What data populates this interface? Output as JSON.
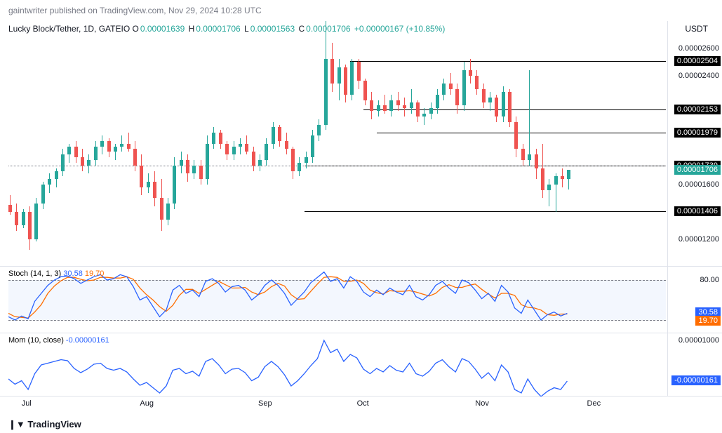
{
  "header": {
    "publisher": "gaintwriter",
    "published_text": "published on",
    "site": "TradingView.com",
    "timestamp": "Nov 29, 2024 10:28 UTC"
  },
  "main_chart": {
    "symbol": "Lucky Block/Tether, 1D, GATEIO",
    "ohlc": {
      "O": "0.00001639",
      "H": "0.00001706",
      "L": "0.00001563",
      "C": "0.00001706",
      "change": "+0.00000167",
      "pct": "+10.85%"
    },
    "ohlc_color": "#26a69a",
    "unit": "USDT",
    "ylim": [
      1.1e-05,
      2.8e-05
    ],
    "y_ticks": [
      {
        "v": 2.6e-05,
        "label": "0.00002600"
      },
      {
        "v": 2.4e-05,
        "label": "0.00002400"
      },
      {
        "v": 1.6e-05,
        "label": "0.00001600"
      },
      {
        "v": 1.2e-05,
        "label": "0.00001200"
      }
    ],
    "price_lines": [
      {
        "v": 2.504e-05,
        "label": "0.00002504"
      },
      {
        "v": 2.153e-05,
        "label": "0.00002153"
      },
      {
        "v": 1.979e-05,
        "label": "0.00001979"
      },
      {
        "v": 1.739e-05,
        "label": "0.00001739"
      },
      {
        "v": 1.406e-05,
        "label": "0.00001406"
      }
    ],
    "current_price": {
      "v": 1.706e-05,
      "label": "0.00001706",
      "color": "#26a69a"
    },
    "line_starts": {
      "0.00002504": 0.52,
      "0.00002153": 0.54,
      "0.00001979": 0.56,
      "0.00001739": 0.45,
      "0.00001406": 0.45
    },
    "dotted_line": {
      "v": 1.739e-05,
      "start": 0.0
    },
    "colors": {
      "up": "#26a69a",
      "down": "#ef5350"
    },
    "candles": [
      {
        "o": 1.45e-05,
        "h": 1.52e-05,
        "l": 1.38e-05,
        "c": 1.4e-05,
        "t": 0.0
      },
      {
        "o": 1.4e-05,
        "h": 1.46e-05,
        "l": 1.26e-05,
        "c": 1.3e-05,
        "t": 0.01
      },
      {
        "o": 1.3e-05,
        "h": 1.42e-05,
        "l": 1.28e-05,
        "c": 1.4e-05,
        "t": 0.02
      },
      {
        "o": 1.4e-05,
        "h": 1.44e-05,
        "l": 1.12e-05,
        "c": 1.2e-05,
        "t": 0.03
      },
      {
        "o": 1.2e-05,
        "h": 1.5e-05,
        "l": 1.18e-05,
        "c": 1.46e-05,
        "t": 0.04
      },
      {
        "o": 1.46e-05,
        "h": 1.62e-05,
        "l": 1.42e-05,
        "c": 1.6e-05,
        "t": 0.05
      },
      {
        "o": 1.6e-05,
        "h": 1.68e-05,
        "l": 1.54e-05,
        "c": 1.64e-05,
        "t": 0.06
      },
      {
        "o": 1.64e-05,
        "h": 1.72e-05,
        "l": 1.58e-05,
        "c": 1.7e-05,
        "t": 0.07
      },
      {
        "o": 1.7e-05,
        "h": 1.86e-05,
        "l": 1.66e-05,
        "c": 1.82e-05,
        "t": 0.08
      },
      {
        "o": 1.82e-05,
        "h": 1.9e-05,
        "l": 1.76e-05,
        "c": 1.88e-05,
        "t": 0.09
      },
      {
        "o": 1.88e-05,
        "h": 1.92e-05,
        "l": 1.76e-05,
        "c": 1.8e-05,
        "t": 0.1
      },
      {
        "o": 1.8e-05,
        "h": 1.86e-05,
        "l": 1.7e-05,
        "c": 1.74e-05,
        "t": 0.11
      },
      {
        "o": 1.74e-05,
        "h": 1.82e-05,
        "l": 1.68e-05,
        "c": 1.78e-05,
        "t": 0.12
      },
      {
        "o": 1.78e-05,
        "h": 1.92e-05,
        "l": 1.74e-05,
        "c": 1.88e-05,
        "t": 0.13
      },
      {
        "o": 1.88e-05,
        "h": 1.96e-05,
        "l": 1.82e-05,
        "c": 1.92e-05,
        "t": 0.14
      },
      {
        "o": 1.92e-05,
        "h": 1.94e-05,
        "l": 1.8e-05,
        "c": 1.84e-05,
        "t": 0.15
      },
      {
        "o": 1.84e-05,
        "h": 1.9e-05,
        "l": 1.78e-05,
        "c": 1.88e-05,
        "t": 0.16
      },
      {
        "o": 1.88e-05,
        "h": 1.96e-05,
        "l": 1.84e-05,
        "c": 1.9e-05,
        "t": 0.17
      },
      {
        "o": 1.9e-05,
        "h": 1.98e-05,
        "l": 1.84e-05,
        "c": 1.86e-05,
        "t": 0.18
      },
      {
        "o": 1.86e-05,
        "h": 1.92e-05,
        "l": 1.7e-05,
        "c": 1.74e-05,
        "t": 0.19
      },
      {
        "o": 1.74e-05,
        "h": 1.82e-05,
        "l": 1.52e-05,
        "c": 1.58e-05,
        "t": 0.2
      },
      {
        "o": 1.58e-05,
        "h": 1.68e-05,
        "l": 1.54e-05,
        "c": 1.62e-05,
        "t": 0.21
      },
      {
        "o": 1.62e-05,
        "h": 1.7e-05,
        "l": 1.44e-05,
        "c": 1.5e-05,
        "t": 0.22
      },
      {
        "o": 1.5e-05,
        "h": 1.64e-05,
        "l": 1.26e-05,
        "c": 1.34e-05,
        "t": 0.23
      },
      {
        "o": 1.34e-05,
        "h": 1.5e-05,
        "l": 1.3e-05,
        "c": 1.46e-05,
        "t": 0.24
      },
      {
        "o": 1.46e-05,
        "h": 1.8e-05,
        "l": 1.42e-05,
        "c": 1.74e-05,
        "t": 0.25
      },
      {
        "o": 1.74e-05,
        "h": 1.84e-05,
        "l": 1.68e-05,
        "c": 1.78e-05,
        "t": 0.26
      },
      {
        "o": 1.78e-05,
        "h": 1.82e-05,
        "l": 1.62e-05,
        "c": 1.68e-05,
        "t": 0.27
      },
      {
        "o": 1.68e-05,
        "h": 1.78e-05,
        "l": 1.64e-05,
        "c": 1.74e-05,
        "t": 0.28
      },
      {
        "o": 1.74e-05,
        "h": 1.78e-05,
        "l": 1.6e-05,
        "c": 1.64e-05,
        "t": 0.29
      },
      {
        "o": 1.64e-05,
        "h": 1.96e-05,
        "l": 1.6e-05,
        "c": 1.9e-05,
        "t": 0.3
      },
      {
        "o": 1.9e-05,
        "h": 2.02e-05,
        "l": 1.86e-05,
        "c": 1.98e-05,
        "t": 0.31
      },
      {
        "o": 1.98e-05,
        "h": 2e-05,
        "l": 1.86e-05,
        "c": 1.9e-05,
        "t": 0.32
      },
      {
        "o": 1.9e-05,
        "h": 1.92e-05,
        "l": 1.78e-05,
        "c": 1.82e-05,
        "t": 0.33
      },
      {
        "o": 1.82e-05,
        "h": 1.92e-05,
        "l": 1.78e-05,
        "c": 1.88e-05,
        "t": 0.34
      },
      {
        "o": 1.88e-05,
        "h": 1.94e-05,
        "l": 1.82e-05,
        "c": 1.9e-05,
        "t": 0.35
      },
      {
        "o": 1.9e-05,
        "h": 1.96e-05,
        "l": 1.82e-05,
        "c": 1.84e-05,
        "t": 0.36
      },
      {
        "o": 1.84e-05,
        "h": 1.88e-05,
        "l": 1.7e-05,
        "c": 1.74e-05,
        "t": 0.37
      },
      {
        "o": 1.74e-05,
        "h": 1.82e-05,
        "l": 1.7e-05,
        "c": 1.78e-05,
        "t": 0.38
      },
      {
        "o": 1.78e-05,
        "h": 1.94e-05,
        "l": 1.74e-05,
        "c": 1.9e-05,
        "t": 0.39
      },
      {
        "o": 1.9e-05,
        "h": 2.06e-05,
        "l": 1.86e-05,
        "c": 2.02e-05,
        "t": 0.4
      },
      {
        "o": 2.02e-05,
        "h": 2.04e-05,
        "l": 1.88e-05,
        "c": 1.92e-05,
        "t": 0.41
      },
      {
        "o": 1.92e-05,
        "h": 1.98e-05,
        "l": 1.82e-05,
        "c": 1.86e-05,
        "t": 0.42
      },
      {
        "o": 1.86e-05,
        "h": 1.88e-05,
        "l": 1.64e-05,
        "c": 1.7e-05,
        "t": 0.43
      },
      {
        "o": 1.7e-05,
        "h": 1.8e-05,
        "l": 1.66e-05,
        "c": 1.76e-05,
        "t": 0.44
      },
      {
        "o": 1.76e-05,
        "h": 1.84e-05,
        "l": 1.72e-05,
        "c": 1.8e-05,
        "t": 0.45
      },
      {
        "o": 1.8e-05,
        "h": 2e-05,
        "l": 1.76e-05,
        "c": 1.96e-05,
        "t": 0.46
      },
      {
        "o": 1.96e-05,
        "h": 2.08e-05,
        "l": 1.92e-05,
        "c": 2.04e-05,
        "t": 0.47
      },
      {
        "o": 2.04e-05,
        "h": 2.8e-05,
        "l": 2e-05,
        "c": 2.52e-05,
        "t": 0.48
      },
      {
        "o": 2.52e-05,
        "h": 2.64e-05,
        "l": 2.28e-05,
        "c": 2.34e-05,
        "t": 0.49
      },
      {
        "o": 2.34e-05,
        "h": 2.52e-05,
        "l": 2.22e-05,
        "c": 2.46e-05,
        "t": 0.5
      },
      {
        "o": 2.46e-05,
        "h": 2.48e-05,
        "l": 2.2e-05,
        "c": 2.26e-05,
        "t": 0.51
      },
      {
        "o": 2.26e-05,
        "h": 2.52e-05,
        "l": 2.22e-05,
        "c": 2.5e-05,
        "t": 0.52
      },
      {
        "o": 2.5e-05,
        "h": 2.52e-05,
        "l": 2.3e-05,
        "c": 2.36e-05,
        "t": 0.53
      },
      {
        "o": 2.36e-05,
        "h": 2.38e-05,
        "l": 2.18e-05,
        "c": 2.22e-05,
        "t": 0.54
      },
      {
        "o": 2.22e-05,
        "h": 2.28e-05,
        "l": 2.08e-05,
        "c": 2.14e-05,
        "t": 0.55
      },
      {
        "o": 2.14e-05,
        "h": 2.22e-05,
        "l": 2.1e-05,
        "c": 2.18e-05,
        "t": 0.56
      },
      {
        "o": 2.18e-05,
        "h": 2.26e-05,
        "l": 2.12e-05,
        "c": 2.14e-05,
        "t": 0.57
      },
      {
        "o": 2.14e-05,
        "h": 2.26e-05,
        "l": 2.1e-05,
        "c": 2.22e-05,
        "t": 0.58
      },
      {
        "o": 2.22e-05,
        "h": 2.28e-05,
        "l": 2.14e-05,
        "c": 2.18e-05,
        "t": 0.59
      },
      {
        "o": 2.18e-05,
        "h": 2.24e-05,
        "l": 2.1e-05,
        "c": 2.16e-05,
        "t": 0.6
      },
      {
        "o": 2.16e-05,
        "h": 2.3e-05,
        "l": 2.12e-05,
        "c": 2.2e-05,
        "t": 0.61
      },
      {
        "o": 2.2e-05,
        "h": 2.22e-05,
        "l": 2.06e-05,
        "c": 2.1e-05,
        "t": 0.62
      },
      {
        "o": 2.1e-05,
        "h": 2.16e-05,
        "l": 2.04e-05,
        "c": 2.12e-05,
        "t": 0.63
      },
      {
        "o": 2.12e-05,
        "h": 2.2e-05,
        "l": 2.08e-05,
        "c": 2.16e-05,
        "t": 0.64
      },
      {
        "o": 2.16e-05,
        "h": 2.3e-05,
        "l": 2.12e-05,
        "c": 2.26e-05,
        "t": 0.65
      },
      {
        "o": 2.26e-05,
        "h": 2.38e-05,
        "l": 2.22e-05,
        "c": 2.34e-05,
        "t": 0.66
      },
      {
        "o": 2.34e-05,
        "h": 2.42e-05,
        "l": 2.26e-05,
        "c": 2.3e-05,
        "t": 0.67
      },
      {
        "o": 2.3e-05,
        "h": 2.34e-05,
        "l": 2.12e-05,
        "c": 2.18e-05,
        "t": 0.68
      },
      {
        "o": 2.18e-05,
        "h": 2.5e-05,
        "l": 2.14e-05,
        "c": 2.44e-05,
        "t": 0.69
      },
      {
        "o": 2.44e-05,
        "h": 2.52e-05,
        "l": 2.34e-05,
        "c": 2.4e-05,
        "t": 0.7
      },
      {
        "o": 2.4e-05,
        "h": 2.44e-05,
        "l": 2.26e-05,
        "c": 2.3e-05,
        "t": 0.71
      },
      {
        "o": 2.3e-05,
        "h": 2.34e-05,
        "l": 2.16e-05,
        "c": 2.2e-05,
        "t": 0.72
      },
      {
        "o": 2.2e-05,
        "h": 2.28e-05,
        "l": 2.14e-05,
        "c": 2.24e-05,
        "t": 0.73
      },
      {
        "o": 2.24e-05,
        "h": 2.26e-05,
        "l": 2.06e-05,
        "c": 2.1e-05,
        "t": 0.74
      },
      {
        "o": 2.1e-05,
        "h": 2.32e-05,
        "l": 2.06e-05,
        "c": 2.28e-05,
        "t": 0.75
      },
      {
        "o": 2.28e-05,
        "h": 2.3e-05,
        "l": 2.02e-05,
        "c": 2.06e-05,
        "t": 0.76
      },
      {
        "o": 2.06e-05,
        "h": 2.1e-05,
        "l": 1.8e-05,
        "c": 1.86e-05,
        "t": 0.77
      },
      {
        "o": 1.86e-05,
        "h": 1.9e-05,
        "l": 1.74e-05,
        "c": 1.78e-05,
        "t": 0.78
      },
      {
        "o": 1.78e-05,
        "h": 2.44e-05,
        "l": 1.74e-05,
        "c": 1.82e-05,
        "t": 0.79
      },
      {
        "o": 1.82e-05,
        "h": 1.86e-05,
        "l": 1.64e-05,
        "c": 1.72e-05,
        "t": 0.8
      },
      {
        "o": 1.72e-05,
        "h": 1.9e-05,
        "l": 1.5e-05,
        "c": 1.56e-05,
        "t": 0.81
      },
      {
        "o": 1.56e-05,
        "h": 1.64e-05,
        "l": 1.44e-05,
        "c": 1.6e-05,
        "t": 0.82
      },
      {
        "o": 1.6e-05,
        "h": 1.68e-05,
        "l": 1.4e-05,
        "c": 1.66e-05,
        "t": 0.83
      },
      {
        "o": 1.66e-05,
        "h": 1.72e-05,
        "l": 1.58e-05,
        "c": 1.64e-05,
        "t": 0.84
      },
      {
        "o": 1.639e-05,
        "h": 1.706e-05,
        "l": 1.563e-05,
        "c": 1.706e-05,
        "t": 0.85
      }
    ]
  },
  "stoch": {
    "label": "Stoch (14, 1, 3)",
    "k_value": "30.58",
    "d_value": "19.70",
    "k_color": "#2962ff",
    "d_color": "#ff6d00",
    "ylim": [
      0,
      100
    ],
    "bands": [
      20,
      80
    ],
    "y_ticks": [
      {
        "v": 80,
        "label": "80.00"
      }
    ],
    "k_series": [
      25,
      20,
      26,
      22,
      48,
      60,
      72,
      80,
      85,
      86,
      82,
      75,
      80,
      85,
      88,
      80,
      82,
      88,
      85,
      70,
      50,
      55,
      40,
      25,
      35,
      65,
      72,
      60,
      65,
      55,
      78,
      82,
      75,
      62,
      70,
      72,
      65,
      50,
      58,
      72,
      80,
      72,
      60,
      42,
      52,
      62,
      76,
      84,
      92,
      78,
      82,
      68,
      85,
      78,
      62,
      55,
      65,
      58,
      68,
      62,
      58,
      72,
      55,
      50,
      58,
      72,
      78,
      68,
      60,
      80,
      76,
      65,
      52,
      60,
      48,
      72,
      62,
      38,
      30,
      50,
      35,
      20,
      28,
      32,
      26,
      30
    ],
    "d_series": [
      30,
      25,
      24,
      23,
      32,
      43,
      60,
      71,
      79,
      84,
      84,
      81,
      79,
      80,
      84,
      84,
      83,
      83,
      85,
      81,
      68,
      58,
      50,
      40,
      33,
      42,
      57,
      66,
      66,
      60,
      66,
      72,
      78,
      73,
      68,
      68,
      69,
      62,
      58,
      62,
      70,
      75,
      71,
      58,
      51,
      52,
      63,
      74,
      84,
      85,
      84,
      78,
      78,
      80,
      75,
      65,
      61,
      59,
      64,
      63,
      63,
      64,
      62,
      59,
      56,
      60,
      69,
      73,
      69,
      69,
      72,
      74,
      66,
      59,
      53,
      60,
      60,
      57,
      43,
      39,
      38,
      35,
      28,
      27,
      29,
      29
    ]
  },
  "mom": {
    "label": "Mom (10, close)",
    "value": "-0.00000161",
    "color": "#2962ff",
    "ylim": [
      -6e-06,
      1.2e-05
    ],
    "y_ticks": [
      {
        "v": 1e-05,
        "label": "0.00001000"
      }
    ],
    "series": [
      -1e-06,
      -2.5e-06,
      -1.5e-06,
      -4e-06,
      5e-07,
      3e-06,
      3.5e-06,
      4e-06,
      4.5e-06,
      4.2e-06,
      2e-06,
      8e-07,
      1.8e-06,
      3.2e-06,
      3.5e-06,
      2e-06,
      1.5e-06,
      2e-06,
      1e-06,
      -1e-06,
      -2.8e-06,
      -2e-06,
      -3.5e-06,
      -5e-06,
      -3e-06,
      1.5e-06,
      2e-06,
      5e-07,
      1.2e-06,
      -2e-07,
      4e-06,
      4.8e-06,
      3e-06,
      5e-07,
      1.8e-06,
      2e-06,
      8e-07,
      -1.5e-06,
      -5e-07,
      2.5e-06,
      4e-06,
      2.5e-06,
      2e-07,
      -3e-06,
      -1.5e-06,
      5e-07,
      2.8e-06,
      4.8e-06,
      1e-05,
      6.5e-06,
      7.5e-06,
      4e-06,
      6e-06,
      5e-06,
      1.8e-06,
      5e-07,
      2e-06,
      1e-06,
      2.8e-06,
      1.5e-06,
      1e-06,
      3.5e-06,
      5e-07,
      -2e-07,
      1.2e-06,
      3.5e-06,
      4.5e-06,
      2.5e-06,
      1e-06,
      4.8e-06,
      4e-06,
      1.8e-06,
      -8e-07,
      8e-07,
      -1.5e-06,
      3e-06,
      1e-06,
      -4e-06,
      -5e-06,
      -1e-06,
      -4e-06,
      -6e-06,
      -4.5e-06,
      -3.5e-06,
      -4e-06,
      -1.6e-06
    ]
  },
  "x_axis": {
    "labels": [
      {
        "t": 0.02,
        "label": "Jul"
      },
      {
        "t": 0.2,
        "label": "Aug"
      },
      {
        "t": 0.38,
        "label": "Sep"
      },
      {
        "t": 0.53,
        "label": "Oct"
      },
      {
        "t": 0.71,
        "label": "Nov"
      },
      {
        "t": 0.88,
        "label": "Dec"
      }
    ]
  },
  "footer": {
    "logo_text": "TradingView"
  }
}
